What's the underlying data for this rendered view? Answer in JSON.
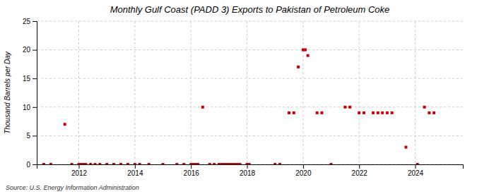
{
  "chart_data": {
    "type": "scatter",
    "title": "Monthly Gulf Coast (PADD 3) Exports to Pakistan of Petroleum Coke",
    "ylabel": "Thousand Barrels per Day",
    "annotations": [
      "Source: U.S. Energy Information Administration"
    ],
    "x": [
      2010.75,
      2011.0,
      2011.5,
      2011.75,
      2012.0,
      2012.08,
      2012.17,
      2012.25,
      2012.42,
      2012.58,
      2012.75,
      2013.0,
      2013.25,
      2013.5,
      2013.75,
      2014.0,
      2014.17,
      2014.5,
      2015.0,
      2015.5,
      2015.75,
      2016.0,
      2016.08,
      2016.17,
      2016.25,
      2016.42,
      2016.67,
      2016.83,
      2017.0,
      2017.08,
      2017.17,
      2017.25,
      2017.33,
      2017.42,
      2017.5,
      2017.58,
      2017.67,
      2017.75,
      2018.0,
      2018.08,
      2019.0,
      2019.17,
      2019.5,
      2019.67,
      2019.83,
      2020.0,
      2020.08,
      2020.17,
      2020.5,
      2020.67,
      2021.0,
      2021.5,
      2021.67,
      2022.0,
      2022.17,
      2022.5,
      2022.67,
      2022.83,
      2023.0,
      2023.17,
      2023.67,
      2024.08,
      2024.33,
      2024.5,
      2024.67
    ],
    "values": [
      0,
      0,
      7,
      0,
      0,
      0,
      0,
      0,
      0,
      0,
      0,
      0,
      0,
      0,
      0,
      0,
      0,
      0,
      0,
      0,
      0,
      0,
      0,
      0,
      0,
      10,
      0,
      0,
      0,
      0,
      0,
      0,
      0,
      0,
      0,
      0,
      0,
      0,
      0,
      0,
      0,
      0,
      9,
      9,
      17,
      20,
      20,
      19,
      9,
      9,
      0,
      10,
      10,
      9,
      9,
      9,
      9,
      9,
      9,
      9,
      3,
      0,
      10,
      9,
      9
    ],
    "color": "#cc0000",
    "marker": "square",
    "xlim": [
      2010.5,
      2025.7
    ],
    "ylim": [
      0,
      25
    ],
    "xticks": [
      2012,
      2014,
      2016,
      2018,
      2020,
      2022,
      2024
    ],
    "yticks": [
      0,
      5,
      10,
      15,
      20,
      25
    ],
    "grid": true
  }
}
